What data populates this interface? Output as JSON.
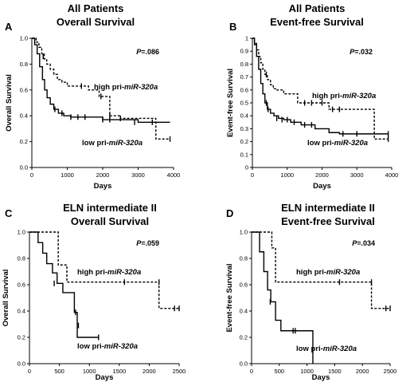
{
  "chart_data": [
    {
      "type": "line",
      "panel": "A",
      "title_line1": "All Patients",
      "title_line2": "Overall Survival",
      "xlabel": "Days",
      "ylabel": "Overall Survival",
      "xlim": [
        0,
        4000
      ],
      "ylim": [
        0,
        1
      ],
      "xticks": [
        "0",
        "1000",
        "2000",
        "3000",
        "4000"
      ],
      "yticks": [
        "0.0",
        "0.2",
        "0.4",
        "0.6",
        "0.8",
        "1.0"
      ],
      "pvalue": "P=.086",
      "series": [
        {
          "label_prefix": "high pri-",
          "label_suffix": "miR-320a",
          "style": "dashed",
          "x": [
            0,
            120,
            200,
            280,
            350,
            420,
            520,
            620,
            720,
            850,
            1000,
            1300,
            1600,
            1900,
            2200,
            2500,
            3500,
            3900
          ],
          "y": [
            1.0,
            0.97,
            0.93,
            0.88,
            0.84,
            0.8,
            0.76,
            0.72,
            0.68,
            0.66,
            0.63,
            0.63,
            0.6,
            0.55,
            0.4,
            0.38,
            0.22,
            0.22
          ],
          "censors": [
            [
              320,
              0.86
            ],
            [
              1400,
              0.63
            ],
            [
              1950,
              0.55
            ],
            [
              2200,
              0.4
            ],
            [
              2500,
              0.38
            ],
            [
              3900,
              0.22
            ]
          ]
        },
        {
          "label_prefix": "low pri-",
          "label_suffix": "miR-320a",
          "style": "solid",
          "x": [
            0,
            80,
            150,
            220,
            300,
            360,
            430,
            520,
            620,
            750,
            900,
            1100,
            2000,
            3000,
            3900
          ],
          "y": [
            1.0,
            0.95,
            0.88,
            0.78,
            0.68,
            0.6,
            0.54,
            0.49,
            0.45,
            0.42,
            0.4,
            0.39,
            0.37,
            0.35,
            0.35
          ],
          "censors": [
            [
              650,
              0.45
            ],
            [
              850,
              0.42
            ],
            [
              1100,
              0.39
            ],
            [
              1300,
              0.39
            ],
            [
              1500,
              0.39
            ],
            [
              2000,
              0.37
            ],
            [
              2200,
              0.37
            ],
            [
              2900,
              0.35
            ],
            [
              3400,
              0.35
            ]
          ]
        }
      ]
    },
    {
      "type": "line",
      "panel": "B",
      "title_line1": "All Patients",
      "title_line2": "Event-free Survival",
      "xlabel": "Days",
      "ylabel": "Event-free Survival",
      "xlim": [
        0,
        4000
      ],
      "ylim": [
        0,
        1
      ],
      "xticks": [
        "0",
        "1000",
        "2000",
        "3000",
        "4000"
      ],
      "yticks": [
        "0",
        "0.1",
        "0.2",
        "0.3",
        "0.4",
        "0.5",
        "0.6",
        "0.7",
        "0.8",
        "0.9",
        "1"
      ],
      "pvalue": "P=.032",
      "series": [
        {
          "label_prefix": "high pri-",
          "label_suffix": "miR-320a",
          "style": "dashed",
          "x": [
            0,
            60,
            120,
            180,
            240,
            300,
            360,
            430,
            520,
            600,
            700,
            900,
            1300,
            1500,
            2200,
            2500,
            3500,
            3900
          ],
          "y": [
            1.0,
            0.96,
            0.91,
            0.86,
            0.81,
            0.76,
            0.72,
            0.68,
            0.64,
            0.61,
            0.6,
            0.57,
            0.5,
            0.5,
            0.45,
            0.45,
            0.22,
            0.22
          ],
          "censors": [
            [
              400,
              0.72
            ],
            [
              1500,
              0.5
            ],
            [
              1700,
              0.5
            ],
            [
              2000,
              0.5
            ],
            [
              2300,
              0.45
            ],
            [
              2500,
              0.45
            ],
            [
              3900,
              0.22
            ]
          ]
        },
        {
          "label_prefix": "low pri-",
          "label_suffix": "miR-320a",
          "style": "solid",
          "x": [
            0,
            60,
            120,
            180,
            240,
            300,
            360,
            430,
            520,
            620,
            750,
            900,
            1100,
            1400,
            1800,
            2200,
            2500,
            3900
          ],
          "y": [
            1.0,
            0.95,
            0.86,
            0.76,
            0.65,
            0.57,
            0.5,
            0.45,
            0.42,
            0.4,
            0.38,
            0.37,
            0.35,
            0.33,
            0.3,
            0.27,
            0.26,
            0.26
          ],
          "censors": [
            [
              400,
              0.5
            ],
            [
              450,
              0.45
            ],
            [
              700,
              0.38
            ],
            [
              850,
              0.37
            ],
            [
              1000,
              0.37
            ],
            [
              1200,
              0.35
            ],
            [
              1500,
              0.33
            ],
            [
              1700,
              0.33
            ],
            [
              2600,
              0.26
            ],
            [
              3000,
              0.26
            ],
            [
              3900,
              0.26
            ]
          ]
        }
      ]
    },
    {
      "type": "line",
      "panel": "C",
      "title_line1": "ELN intermediate II",
      "title_line2": "Overall Survival",
      "xlabel": "Days",
      "ylabel": "Overall Survival",
      "xlim": [
        0,
        2600
      ],
      "ylim": [
        0,
        1
      ],
      "xticks": [
        "0",
        "500",
        "1000",
        "1500",
        "2000",
        "2500"
      ],
      "yticks": [
        "0.0",
        "0.2",
        "0.4",
        "0.6",
        "0.8",
        "1.0"
      ],
      "pvalue": "P=.059",
      "series": [
        {
          "label_prefix": "high pri-",
          "label_suffix": "miR-320a",
          "style": "dashed",
          "x": [
            0,
            430,
            500,
            650,
            2250,
            2600
          ],
          "y": [
            1.0,
            1.0,
            0.75,
            0.62,
            0.42,
            0.42
          ],
          "censors": [
            [
              1650,
              0.62
            ],
            [
              2250,
              0.62
            ],
            [
              2520,
              0.42
            ],
            [
              2600,
              0.42
            ]
          ]
        },
        {
          "label_prefix": "low pri-",
          "label_suffix": "miR-320a",
          "style": "solid",
          "x": [
            0,
            150,
            230,
            300,
            400,
            480,
            580,
            780,
            830,
            1200
          ],
          "y": [
            1.0,
            0.92,
            0.84,
            0.76,
            0.69,
            0.61,
            0.54,
            0.39,
            0.2,
            0.2
          ],
          "censors": [
            [
              430,
              0.61
            ],
            [
              800,
              0.39
            ],
            [
              850,
              0.29
            ],
            [
              1200,
              0.2
            ]
          ]
        }
      ]
    },
    {
      "type": "line",
      "panel": "D",
      "title_line1": "ELN intermediate II",
      "title_line2": "Event-free Survival",
      "xlabel": "Days",
      "ylabel": "Event-free Survival",
      "xlim": [
        0,
        2600
      ],
      "ylim": [
        0,
        1
      ],
      "xticks": [
        "0",
        "500",
        "1000",
        "1500",
        "2000",
        "2500"
      ],
      "yticks": [
        "0.0",
        "0.2",
        "0.4",
        "0.6",
        "0.8",
        "1.0"
      ],
      "pvalue": "P=.034",
      "series": [
        {
          "label_prefix": "high pri-",
          "label_suffix": "miR-320a",
          "style": "dashed",
          "x": [
            0,
            300,
            380,
            450,
            2250,
            2600
          ],
          "y": [
            1.0,
            1.0,
            0.88,
            0.62,
            0.42,
            0.42
          ],
          "censors": [
            [
              1650,
              0.62
            ],
            [
              2250,
              0.62
            ],
            [
              2520,
              0.42
            ],
            [
              2600,
              0.42
            ]
          ]
        },
        {
          "label_prefix": "low pri-",
          "label_suffix": "miR-320a",
          "style": "solid",
          "x": [
            0,
            150,
            230,
            300,
            360,
            450,
            550,
            1150,
            1150
          ],
          "y": [
            1.0,
            0.85,
            0.7,
            0.56,
            0.47,
            0.33,
            0.25,
            0.25,
            0.0
          ],
          "censors": [
            [
              350,
              0.47
            ],
            [
              780,
              0.25
            ],
            [
              820,
              0.25
            ]
          ]
        }
      ]
    }
  ]
}
